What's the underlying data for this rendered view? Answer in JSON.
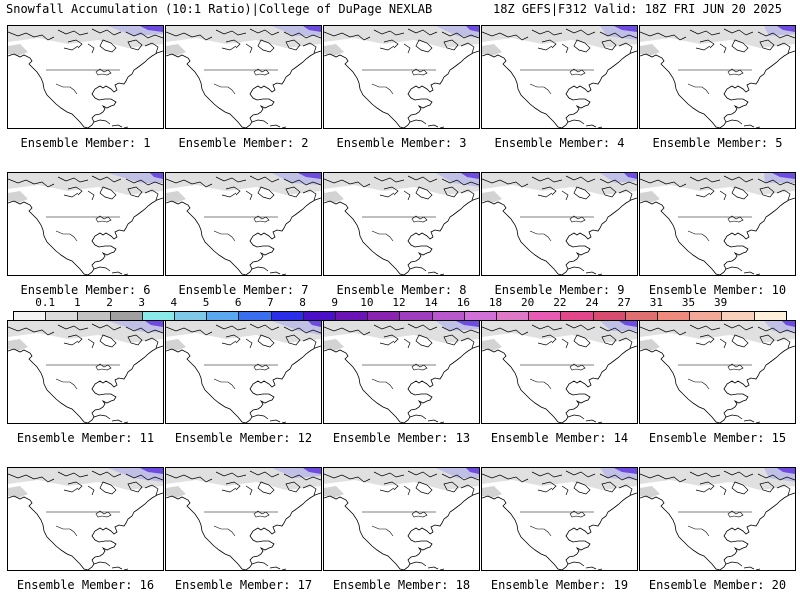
{
  "header": {
    "left_title": "Snowfall Accumulation (10:1 Ratio)|College of DuPage NEXLAB",
    "right_title": "18Z GEFS|F312 Valid: 18Z FRI JUN 20 2025"
  },
  "colorbar": {
    "labels": [
      "0.1",
      "1",
      "2",
      "3",
      "4",
      "5",
      "6",
      "7",
      "8",
      "9",
      "10",
      "12",
      "14",
      "16",
      "18",
      "20",
      "22",
      "24",
      "27",
      "31",
      "35",
      "39"
    ],
    "colors": [
      "#f4f4f4",
      "#dcdcdc",
      "#c2c2c2",
      "#a0a0a0",
      "#8aeaea",
      "#7ec8e8",
      "#5aa8f0",
      "#3a6ef0",
      "#2a2ee8",
      "#4a10c8",
      "#6a14b8",
      "#8a24b0",
      "#a03cc0",
      "#b858cc",
      "#d070d8",
      "#e078c8",
      "#e85ab4",
      "#e4468c",
      "#d84c70",
      "#e07070",
      "#f08a7c",
      "#f4a898",
      "#f8d0bc",
      "#fff0dc"
    ]
  },
  "members": [
    {
      "label": "Ensemble Member: 1"
    },
    {
      "label": "Ensemble Member: 2"
    },
    {
      "label": "Ensemble Member: 3"
    },
    {
      "label": "Ensemble Member: 4"
    },
    {
      "label": "Ensemble Member: 5"
    },
    {
      "label": "Ensemble Member: 6"
    },
    {
      "label": "Ensemble Member: 7"
    },
    {
      "label": "Ensemble Member: 8"
    },
    {
      "label": "Ensemble Member: 9"
    },
    {
      "label": "Ensemble Member: 10"
    },
    {
      "label": "Ensemble Member: 11"
    },
    {
      "label": "Ensemble Member: 12"
    },
    {
      "label": "Ensemble Member: 13"
    },
    {
      "label": "Ensemble Member: 14"
    },
    {
      "label": "Ensemble Member: 15"
    },
    {
      "label": "Ensemble Member: 16"
    },
    {
      "label": "Ensemble Member: 17"
    },
    {
      "label": "Ensemble Member: 18"
    },
    {
      "label": "Ensemble Member: 19"
    },
    {
      "label": "Ensemble Member: 20"
    }
  ]
}
